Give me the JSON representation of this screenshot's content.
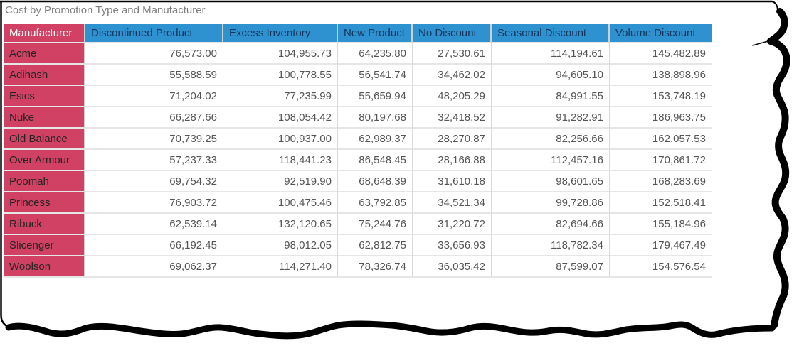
{
  "title": "Cost by Promotion Type and Manufacturer",
  "colors": {
    "header_blue": "#2E92D1",
    "header_text": "#14355C",
    "label_crimson": "#D04163",
    "label_text": "#252423",
    "value_text": "#555555",
    "grid": "#D9D9D9",
    "row_sep": "#E6E6E6",
    "title_text": "#7F7F7F",
    "torn_ink": "#000000"
  },
  "table": {
    "corner_header": "Manufacturer",
    "columns": [
      "Discontinued Product",
      "Excess Inventory",
      "New Product",
      "No Discount",
      "Seasonal Discount",
      "Volume Discount"
    ],
    "rows": [
      {
        "label": "Acme",
        "values": [
          "76,573.00",
          "104,955.73",
          "64,235.80",
          "27,530.61",
          "114,194.61",
          "145,482.89"
        ]
      },
      {
        "label": "Adihash",
        "values": [
          "55,588.59",
          "100,778.55",
          "56,541.74",
          "34,462.02",
          "94,605.10",
          "138,898.96"
        ]
      },
      {
        "label": "Esics",
        "values": [
          "71,204.02",
          "77,235.99",
          "55,659.94",
          "48,205.29",
          "84,991.55",
          "153,748.19"
        ]
      },
      {
        "label": "Nuke",
        "values": [
          "66,287.66",
          "108,054.42",
          "80,197.68",
          "32,418.52",
          "91,282.91",
          "186,963.75"
        ]
      },
      {
        "label": "Old Balance",
        "values": [
          "70,739.25",
          "100,937.00",
          "62,989.37",
          "28,270.87",
          "82,256.66",
          "162,057.53"
        ]
      },
      {
        "label": "Over Armour",
        "values": [
          "57,237.33",
          "118,441.23",
          "86,548.45",
          "28,166.88",
          "112,457.16",
          "170,861.72"
        ]
      },
      {
        "label": "Poomah",
        "values": [
          "69,754.32",
          "92,519.90",
          "68,648.39",
          "31,610.18",
          "98,601.65",
          "168,283.69"
        ]
      },
      {
        "label": "Princess",
        "values": [
          "76,903.72",
          "100,475.46",
          "63,792.85",
          "34,521.34",
          "99,728.86",
          "152,518.41"
        ]
      },
      {
        "label": "Ribuck",
        "values": [
          "62,539.14",
          "132,120.65",
          "75,244.76",
          "31,220.72",
          "82,694.66",
          "155,184.96"
        ]
      },
      {
        "label": "Slicenger",
        "values": [
          "66,192.45",
          "98,012.05",
          "62,812.75",
          "33,656.93",
          "118,782.34",
          "179,467.49"
        ]
      },
      {
        "label": "Woolson",
        "values": [
          "69,062.37",
          "114,271.40",
          "78,326.74",
          "36,035.42",
          "87,599.07",
          "154,576.54"
        ]
      }
    ]
  },
  "chart_data": {
    "type": "table",
    "title": "Cost by Promotion Type and Manufacturer",
    "row_dimension": "Manufacturer",
    "column_dimension": "Promotion Type",
    "columns": [
      "Discontinued Product",
      "Excess Inventory",
      "New Product",
      "No Discount",
      "Seasonal Discount",
      "Volume Discount"
    ],
    "rows": [
      {
        "name": "Acme",
        "values": [
          76573.0,
          104955.73,
          64235.8,
          27530.61,
          114194.61,
          145482.89
        ]
      },
      {
        "name": "Adihash",
        "values": [
          55588.59,
          100778.55,
          56541.74,
          34462.02,
          94605.1,
          138898.96
        ]
      },
      {
        "name": "Esics",
        "values": [
          71204.02,
          77235.99,
          55659.94,
          48205.29,
          84991.55,
          153748.19
        ]
      },
      {
        "name": "Nuke",
        "values": [
          66287.66,
          108054.42,
          80197.68,
          32418.52,
          91282.91,
          186963.75
        ]
      },
      {
        "name": "Old Balance",
        "values": [
          70739.25,
          100937.0,
          62989.37,
          28270.87,
          82256.66,
          162057.53
        ]
      },
      {
        "name": "Over Armour",
        "values": [
          57237.33,
          118441.23,
          86548.45,
          28166.88,
          112457.16,
          170861.72
        ]
      },
      {
        "name": "Poomah",
        "values": [
          69754.32,
          92519.9,
          68648.39,
          31610.18,
          98601.65,
          168283.69
        ]
      },
      {
        "name": "Princess",
        "values": [
          76903.72,
          100475.46,
          63792.85,
          34521.34,
          99728.86,
          152518.41
        ]
      },
      {
        "name": "Ribuck",
        "values": [
          62539.14,
          132120.65,
          75244.76,
          31220.72,
          82694.66,
          155184.96
        ]
      },
      {
        "name": "Slicenger",
        "values": [
          66192.45,
          98012.05,
          62812.75,
          33656.93,
          118782.34,
          179467.49
        ]
      },
      {
        "name": "Woolson",
        "values": [
          69062.37,
          114271.4,
          78326.74,
          36035.42,
          87599.07,
          154576.54
        ]
      }
    ]
  }
}
